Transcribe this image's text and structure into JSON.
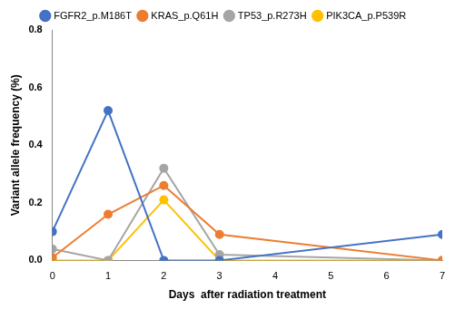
{
  "chart_data": {
    "type": "line",
    "x_label": "Days  after radiation treatment",
    "y_label": "Variant allele frequency (%)",
    "x": [
      0,
      1,
      2,
      3,
      7
    ],
    "series": [
      {
        "name": "FGFR2_p.M186T",
        "color": "#4472c4",
        "values": [
          0.1,
          0.52,
          0.0,
          0.0,
          0.09
        ]
      },
      {
        "name": "KRAS_p.Q61H",
        "color": "#ed7d31",
        "values": [
          0.01,
          0.16,
          0.26,
          0.09,
          0.0
        ]
      },
      {
        "name": "TP53_p.R273H",
        "color": "#a5a5a5",
        "values": [
          0.04,
          0.0,
          0.32,
          0.02,
          0.0
        ]
      },
      {
        "name": "PIK3CA_p.P539R",
        "color": "#ffc000",
        "values": [
          0.0,
          0.0,
          0.21,
          0.0,
          0.0
        ]
      }
    ],
    "xlim": [
      0,
      7
    ],
    "xticks": [
      0,
      1,
      2,
      3,
      4,
      5,
      6,
      7
    ],
    "ylim": [
      0,
      0.8
    ],
    "yticks": [
      {
        "value": 0,
        "label": "0.0"
      },
      {
        "value": 0.2,
        "label": "0.2"
      },
      {
        "value": 0.4,
        "label": "0.4"
      },
      {
        "value": 0.6,
        "label": "0.6"
      },
      {
        "value": 0.8,
        "label": "0.8"
      }
    ],
    "grid": false,
    "legend": "top",
    "marker": "circle"
  }
}
